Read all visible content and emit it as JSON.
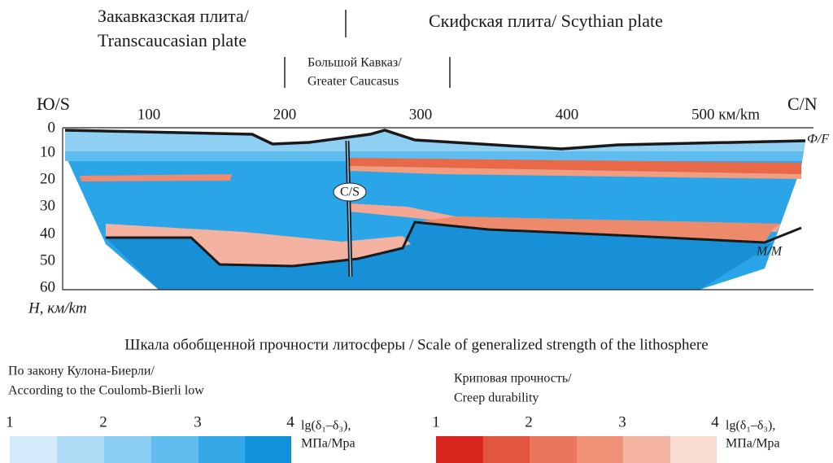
{
  "header": {
    "left_plate": [
      "Закавказская плита/",
      "Transcaucasian plate"
    ],
    "right_plate": "Скифская плита/ Scythian plate",
    "center": [
      "Большой Кавказ/",
      "Greater Caucasus"
    ]
  },
  "section": {
    "south": "Ю/S",
    "north": "C/N",
    "x_ticks": [
      "100",
      "200",
      "300",
      "400",
      "500 км/km"
    ],
    "depth_ticks": [
      "0",
      "10",
      "20",
      "30",
      "40",
      "50",
      "60"
    ],
    "depth_label": "H, км/km",
    "fault_label": "C/S",
    "surface_label": "Ф/F",
    "moho_label": "M/M"
  },
  "legend": {
    "title": "Шкала обобщенной прочности литосферы / Scale of generalized strength of the lithosphere",
    "coulomb": {
      "title": [
        "По закону Кулона-Биерли/",
        "According to the Coulomb-Bierli low"
      ],
      "ticks": [
        "1",
        "2",
        "3",
        "4"
      ],
      "unit": [
        "lg(δ₁–δ₃),",
        "МПа/Мpa"
      ]
    },
    "creep": {
      "title": [
        "Криповая прочность/",
        "Creep durability"
      ],
      "ticks": [
        "1",
        "2",
        "3",
        "4"
      ],
      "unit": [
        "lg(δ₁–δ₃),",
        "МПа/Мpa"
      ]
    }
  }
}
